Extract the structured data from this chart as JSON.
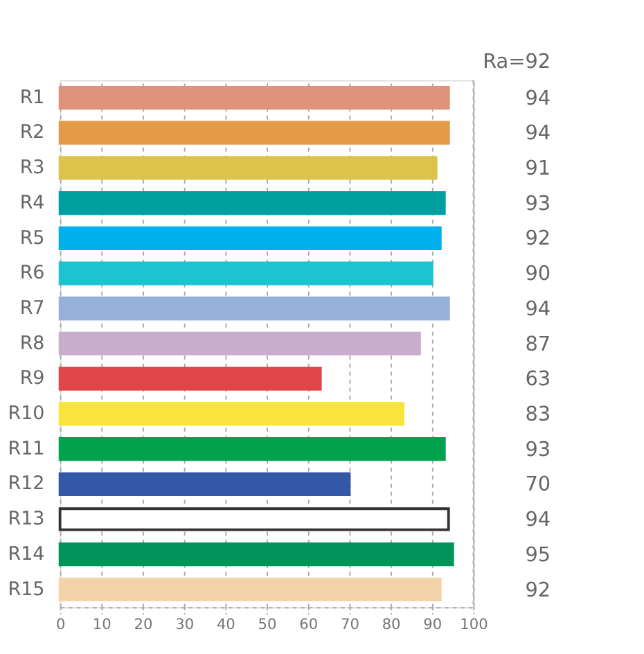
{
  "chart_data": {
    "type": "bar",
    "orientation": "horizontal",
    "categories": [
      "R1",
      "R2",
      "R3",
      "R4",
      "R5",
      "R6",
      "R7",
      "R8",
      "R9",
      "R10",
      "R11",
      "R12",
      "R13",
      "R14",
      "R15"
    ],
    "values": [
      94,
      94,
      91,
      93,
      92,
      90,
      94,
      87,
      63,
      83,
      93,
      70,
      94,
      95,
      92
    ],
    "colors": [
      "#e0927a",
      "#e39b48",
      "#dcc44a",
      "#00a0a0",
      "#00b0ec",
      "#1ec3d2",
      "#96b0d8",
      "#c8aecc",
      "#e04648",
      "#f8e43a",
      "#00a24e",
      "#3358a6",
      "#ffffff",
      "#00935a",
      "#f2d4a8"
    ],
    "xlim": [
      0,
      100
    ],
    "xticks": [
      0,
      10,
      20,
      30,
      40,
      50,
      60,
      70,
      80,
      90,
      100
    ],
    "grid": "x",
    "data_labels": true,
    "annotations": [
      "Ra=92"
    ]
  }
}
